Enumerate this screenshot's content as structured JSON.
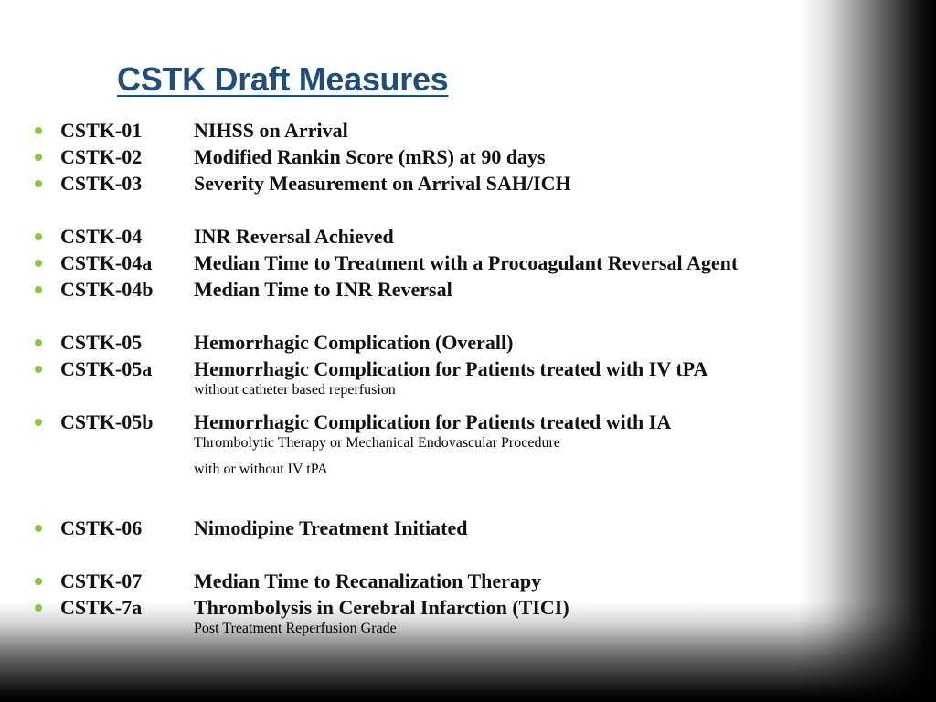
{
  "slide": {
    "title": "CSTK Draft Measures",
    "bullet_color": "#8cc63f",
    "title_color": "#1f4e79",
    "measures": [
      {
        "code": "CSTK-01",
        "lines": [
          "NIHSS on Arrival"
        ]
      },
      {
        "code": "CSTK-02",
        "lines": [
          "Modified Rankin Score (mRS) at 90 days"
        ]
      },
      {
        "code": "CSTK-03",
        "lines": [
          "Severity Measurement on Arrival SAH/ICH"
        ]
      },
      {
        "code": "CSTK-04",
        "lines": [
          "INR Reversal Achieved"
        ]
      },
      {
        "code": "CSTK-04a",
        "lines": [
          "Median Time to Treatment with a Procoagulant Reversal Agent"
        ]
      },
      {
        "code": "CSTK-04b",
        "lines": [
          "Median Time to INR Reversal"
        ]
      },
      {
        "code": "CSTK-05",
        "lines": [
          "Hemorrhagic Complication (Overall)"
        ]
      },
      {
        "code": "CSTK-05a",
        "lines": [
          "Hemorrhagic Complication for Patients treated with IV tPA",
          "without catheter based reperfusion"
        ]
      },
      {
        "code": "CSTK-05b",
        "lines": [
          "Hemorrhagic Complication for Patients treated with IA",
          "Thrombolytic Therapy or Mechanical Endovascular Procedure",
          "with or without IV tPA"
        ]
      },
      {
        "code": "CSTK-06",
        "lines": [
          "Nimodipine Treatment Initiated"
        ]
      },
      {
        "code": "CSTK-07",
        "lines": [
          "Median Time to Recanalization Therapy"
        ]
      },
      {
        "code": "CSTK-7a",
        "lines": [
          "Thrombolysis in Cerebral Infarction (TICI)",
          "Post Treatment Reperfusion Grade"
        ]
      }
    ]
  }
}
